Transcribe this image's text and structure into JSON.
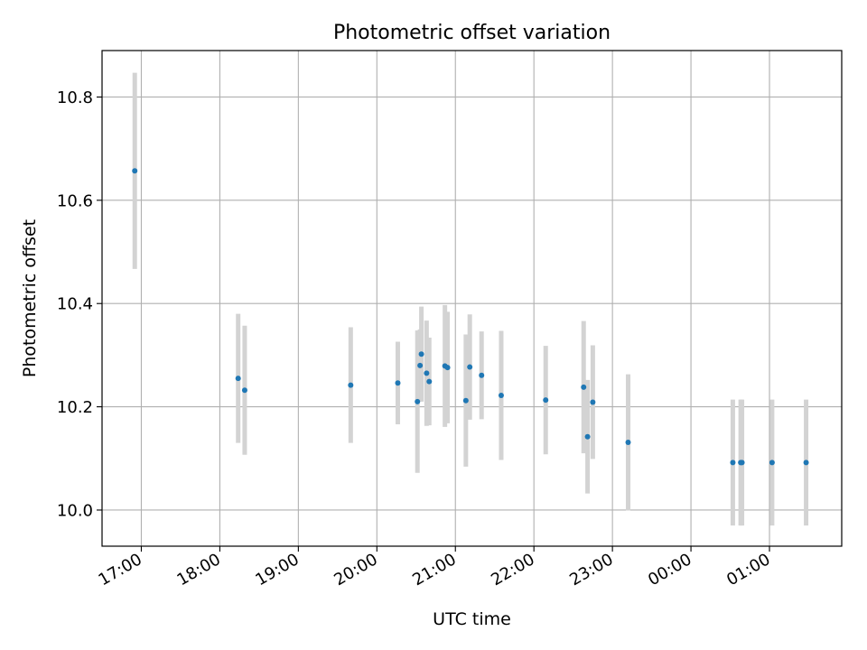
{
  "chart_data": {
    "type": "scatter",
    "title": "Photometric offset variation",
    "xlabel": "UTC time",
    "ylabel": "Photometric offset",
    "grid": true,
    "x_tick_labels": [
      "17:00",
      "18:00",
      "19:00",
      "20:00",
      "21:00",
      "22:00",
      "23:00",
      "00:00",
      "01:00"
    ],
    "x_tick_hours": [
      17,
      18,
      19,
      20,
      21,
      22,
      23,
      24,
      25
    ],
    "xlim_hours": [
      16.5,
      25.92
    ],
    "ylim": [
      9.93,
      10.89
    ],
    "y_ticks": [
      10.0,
      10.2,
      10.4,
      10.6,
      10.8
    ],
    "y_tick_labels": [
      "10.0",
      "10.2",
      "10.4",
      "10.6",
      "10.8"
    ],
    "marker_color": "#1f77b4",
    "errorbar_color": "#d3d3d3",
    "points": [
      {
        "time": "16:55",
        "y": 10.657,
        "err": 0.19
      },
      {
        "time": "18:14",
        "y": 10.255,
        "err": 0.125
      },
      {
        "time": "18:19",
        "y": 10.232,
        "err": 0.125
      },
      {
        "time": "19:40",
        "y": 10.242,
        "err": 0.112
      },
      {
        "time": "20:16",
        "y": 10.246,
        "err": 0.08
      },
      {
        "time": "20:31",
        "y": 10.21,
        "err": 0.138
      },
      {
        "time": "20:33",
        "y": 10.28,
        "err": 0.07
      },
      {
        "time": "20:34",
        "y": 10.302,
        "err": 0.092
      },
      {
        "time": "20:38",
        "y": 10.265,
        "err": 0.102
      },
      {
        "time": "20:40",
        "y": 10.249,
        "err": 0.085
      },
      {
        "time": "20:52",
        "y": 10.279,
        "err": 0.118
      },
      {
        "time": "20:54",
        "y": 10.276,
        "err": 0.108
      },
      {
        "time": "21:08",
        "y": 10.212,
        "err": 0.128
      },
      {
        "time": "21:11",
        "y": 10.277,
        "err": 0.102
      },
      {
        "time": "21:20",
        "y": 10.261,
        "err": 0.085
      },
      {
        "time": "21:35",
        "y": 10.222,
        "err": 0.125
      },
      {
        "time": "22:09",
        "y": 10.213,
        "err": 0.105
      },
      {
        "time": "22:38",
        "y": 10.238,
        "err": 0.128
      },
      {
        "time": "22:41",
        "y": 10.142,
        "err": 0.11
      },
      {
        "time": "22:45",
        "y": 10.209,
        "err": 0.11
      },
      {
        "time": "23:12",
        "y": 10.131,
        "err": 0.132
      },
      {
        "time": "00:32",
        "y": 10.092,
        "err": 0.122
      },
      {
        "time": "00:38",
        "y": 10.092,
        "err": 0.122
      },
      {
        "time": "00:39",
        "y": 10.092,
        "err": 0.122
      },
      {
        "time": "01:02",
        "y": 10.092,
        "err": 0.122
      },
      {
        "time": "01:28",
        "y": 10.092,
        "err": 0.122
      }
    ]
  }
}
